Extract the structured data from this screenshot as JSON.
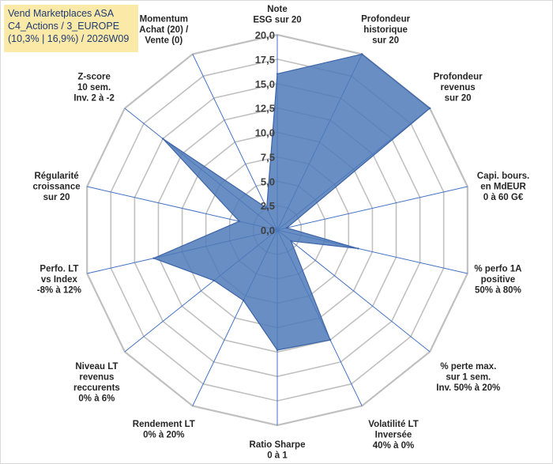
{
  "chart_data": {
    "type": "radar",
    "title_lines": [
      "Vend Marketplaces ASA",
      "C4_Actions / 3_EUROPE",
      "(10,3% | 16,9%) / 2026W09"
    ],
    "r_ticks": [
      "0,0",
      "2,5",
      "5,0",
      "7,5",
      "10,0",
      "12,5",
      "15,0",
      "17,5",
      "20,0"
    ],
    "rlim": [
      0,
      20
    ],
    "grid": true,
    "axes": [
      {
        "label": [
          "Note",
          "ESG sur 20"
        ],
        "value": 16.0
      },
      {
        "label": [
          "Profondeur",
          "historique",
          "sur 20"
        ],
        "value": 20.0
      },
      {
        "label": [
          "Profondeur",
          "revenus",
          "sur 20"
        ],
        "value": 20.0
      },
      {
        "label": [
          "Capi. bours.",
          "en MdEUR",
          "0 à 60 G€"
        ],
        "value": 1.0
      },
      {
        "label": [
          "% perfo 1A",
          "positive",
          "50% à 80%"
        ],
        "value": 8.5
      },
      {
        "label": [
          "% perte max.",
          "sur 1 sem.",
          "Inv. 50% à 20%"
        ],
        "value": 1.8
      },
      {
        "label": [
          "Volatilité LT",
          "Inversée",
          "40% à 0%"
        ],
        "value": 12.5
      },
      {
        "label": [
          "Ratio Sharpe",
          "0 à 1"
        ],
        "value": 12.3
      },
      {
        "label": [
          "Rendement LT",
          "0% à 20%"
        ],
        "value": 8.0
      },
      {
        "label": [
          "Niveau LT",
          "revenus",
          "reccurents",
          "0% à 6%"
        ],
        "value": 8.3
      },
      {
        "label": [
          "Perfo. LT",
          "vs Index",
          "-8% à 12%"
        ],
        "value": 13.0
      },
      {
        "label": [
          "Régularité",
          "croissance",
          "sur 20"
        ],
        "value": 4.0
      },
      {
        "label": [
          "Z-score",
          "10 sem.",
          "Inv. 2 à -2"
        ],
        "value": 15.0
      },
      {
        "label": [
          "Momentum",
          "Achat (20) /",
          "Vente (0)"
        ],
        "value": 2.5
      }
    ],
    "colors": {
      "fill": "#4f7ab8",
      "line": "#3c64a8",
      "grid": "#c0c0c0",
      "spoke": "#4472c4"
    }
  }
}
